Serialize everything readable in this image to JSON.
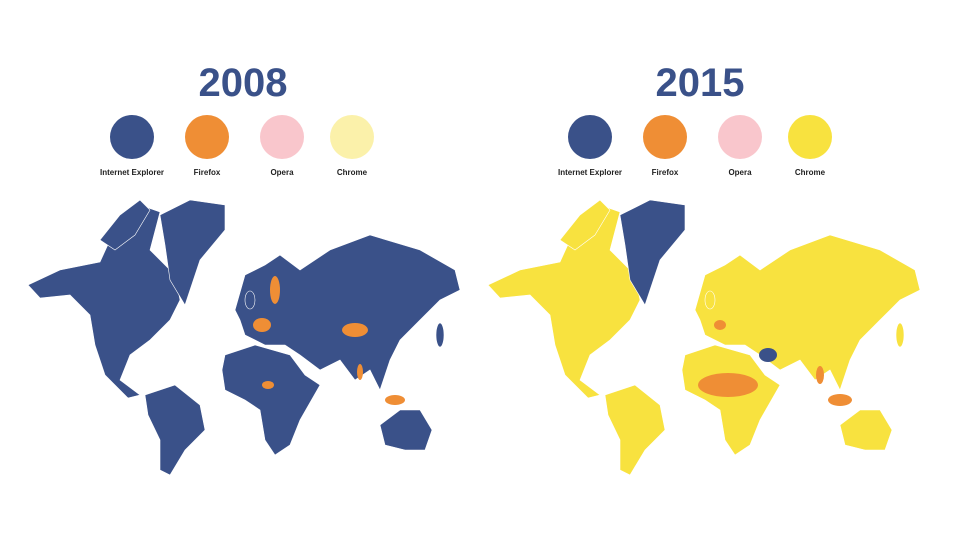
{
  "panels": [
    {
      "title": "2008",
      "legend": [
        {
          "label": "Internet Explorer",
          "color": "#3a5189"
        },
        {
          "label": "Firefox",
          "color": "#ef8e35"
        },
        {
          "label": "Opera",
          "color": "#f9c6cc"
        },
        {
          "label": "Chrome",
          "color": "#fbf1aa"
        }
      ]
    },
    {
      "title": "2015",
      "legend": [
        {
          "label": "Internet Explorer",
          "color": "#3a5189"
        },
        {
          "label": "Firefox",
          "color": "#ef8e35"
        },
        {
          "label": "Opera",
          "color": "#f9c6cc"
        },
        {
          "label": "Chrome",
          "color": "#f8e23f"
        }
      ]
    }
  ]
}
